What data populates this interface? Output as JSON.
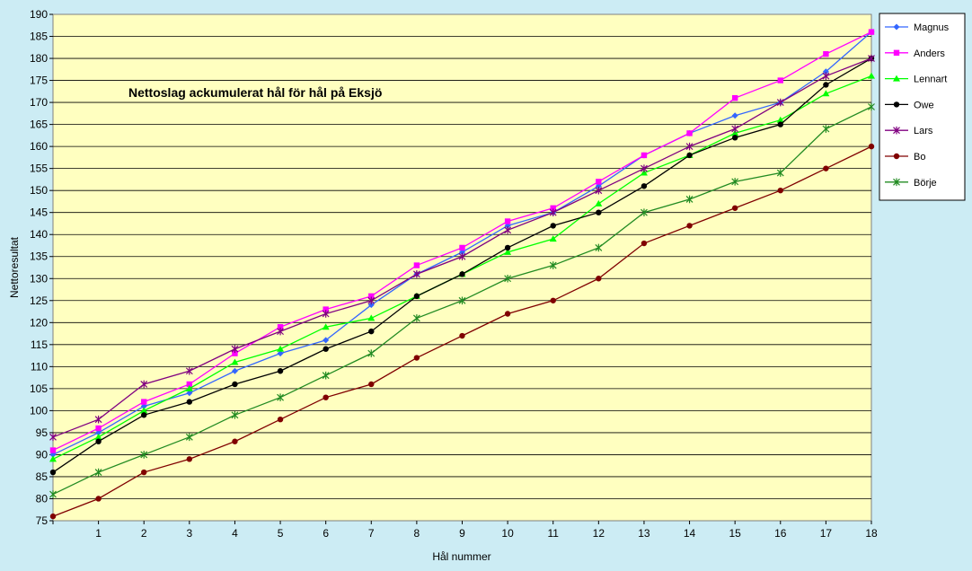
{
  "chart_data": {
    "type": "line",
    "title": "Nettoslag ackumulerat hål för hål på Eksjö",
    "xlabel": "Hål nummer",
    "ylabel": "Nettoresultat",
    "x": [
      0,
      1,
      2,
      3,
      4,
      5,
      6,
      7,
      8,
      9,
      10,
      11,
      12,
      13,
      14,
      15,
      16,
      17,
      18
    ],
    "x_tick_labels": [
      "1",
      "2",
      "3",
      "4",
      "5",
      "6",
      "7",
      "8",
      "9",
      "10",
      "11",
      "12",
      "13",
      "14",
      "15",
      "16",
      "17",
      "18"
    ],
    "xlim": [
      0,
      18
    ],
    "ylim": [
      75,
      190
    ],
    "y_ticks": [
      75,
      80,
      85,
      90,
      95,
      100,
      105,
      110,
      115,
      120,
      125,
      130,
      135,
      140,
      145,
      150,
      155,
      160,
      165,
      170,
      175,
      180,
      185,
      190
    ],
    "grid": true,
    "legend_position": "right",
    "plot_background": "#ffffc0",
    "series": [
      {
        "name": "Magnus",
        "color": "#3366ff",
        "marker": "diamond",
        "values": [
          90,
          95,
          101,
          104,
          109,
          113,
          116,
          124,
          131,
          136,
          142,
          145,
          151,
          158,
          163,
          167,
          170,
          177,
          186
        ]
      },
      {
        "name": "Anders",
        "color": "#ff00ff",
        "marker": "square",
        "values": [
          91,
          96,
          102,
          106,
          113,
          119,
          123,
          126,
          133,
          137,
          143,
          146,
          152,
          158,
          163,
          171,
          175,
          181,
          186
        ]
      },
      {
        "name": "Lennart",
        "color": "#00ff00",
        "marker": "triangle",
        "values": [
          89,
          94,
          100,
          105,
          111,
          114,
          119,
          121,
          126,
          131,
          136,
          139,
          147,
          154,
          158,
          163,
          166,
          172,
          176
        ]
      },
      {
        "name": "Owe",
        "color": "#000000",
        "marker": "circle",
        "values": [
          86,
          93,
          99,
          102,
          106,
          109,
          114,
          118,
          126,
          131,
          137,
          142,
          145,
          151,
          158,
          162,
          165,
          174,
          180
        ]
      },
      {
        "name": "Lars",
        "color": "#800080",
        "marker": "star",
        "values": [
          94,
          98,
          106,
          109,
          114,
          118,
          122,
          125,
          131,
          135,
          141,
          145,
          150,
          155,
          160,
          164,
          170,
          176,
          180
        ]
      },
      {
        "name": "Bo",
        "color": "#800000",
        "marker": "circle",
        "values": [
          76,
          80,
          86,
          89,
          93,
          98,
          103,
          106,
          112,
          117,
          122,
          125,
          130,
          138,
          142,
          146,
          150,
          155,
          160
        ]
      },
      {
        "name": "Börje",
        "color": "#228b22",
        "marker": "star",
        "values": [
          81,
          86,
          90,
          94,
          99,
          103,
          108,
          113,
          121,
          125,
          130,
          133,
          137,
          145,
          148,
          152,
          154,
          164,
          169
        ]
      }
    ]
  }
}
